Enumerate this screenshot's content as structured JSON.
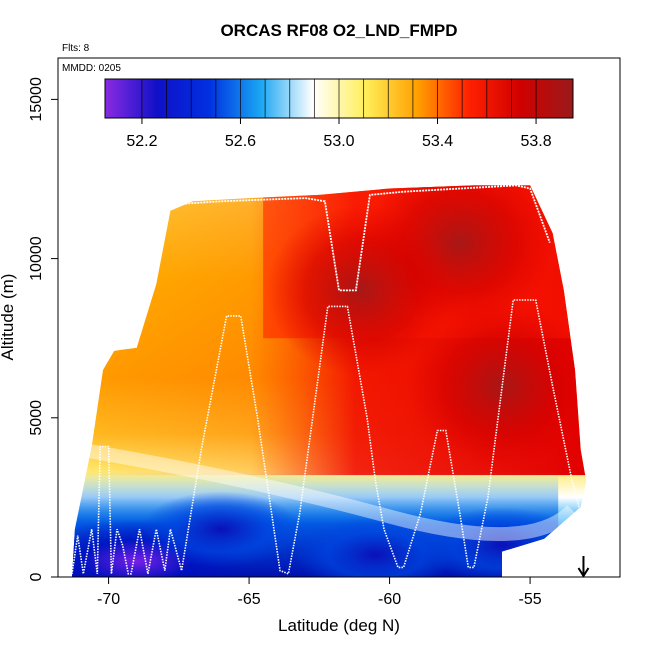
{
  "chart_data": {
    "type": "heatmap",
    "title": "ORCAS RF08 O2_LND_FMPD",
    "flights_note": "Flts: 8",
    "date_note": "MMDD: 0205",
    "xlabel": "Latitude (deg N)",
    "ylabel": "Altitude (m)",
    "xlim": [
      -71.8,
      -51.8
    ],
    "ylim": [
      0,
      16300
    ],
    "x_ticks": [
      -70,
      -65,
      -60,
      -55
    ],
    "y_ticks": [
      0,
      5000,
      10000,
      15000
    ],
    "colorbar": {
      "range": [
        52.05,
        53.95
      ],
      "ticks": [
        52.2,
        52.6,
        53.0,
        53.4,
        53.8
      ],
      "tick_labels": [
        "52.2",
        "52.6",
        "53.0",
        "53.4",
        "53.8"
      ],
      "colors": [
        "#8a2be2",
        "#1010c8",
        "#0030e0",
        "#1aa7f2",
        "#ffffff",
        "#ffef5a",
        "#ffa000",
        "#ff2000",
        "#d00000",
        "#9a1a1a"
      ]
    },
    "field": {
      "description": "O2_LND_FMPD cross-section, low values near surface south of -65, high values aloft and north",
      "upper_boundary": [
        [
          -71.2,
          1500
        ],
        [
          -70.6,
          4100
        ],
        [
          -70.2,
          6500
        ],
        [
          -69.8,
          7100
        ],
        [
          -69.0,
          7200
        ],
        [
          -68.3,
          9200
        ],
        [
          -67.8,
          11500
        ],
        [
          -67.0,
          11800
        ],
        [
          -65.0,
          11900
        ],
        [
          -62.5,
          12000
        ],
        [
          -60.0,
          12200
        ],
        [
          -57.0,
          12300
        ],
        [
          -55.0,
          12300
        ],
        [
          -54.2,
          10800
        ],
        [
          -53.8,
          9000
        ],
        [
          -53.4,
          6500
        ],
        [
          -53.2,
          4000
        ],
        [
          -53.0,
          3000
        ],
        [
          -53.2,
          2200
        ],
        [
          -54.5,
          1200
        ],
        [
          -56.0,
          800
        ]
      ],
      "low_centers": [
        {
          "lat": -69.0,
          "alt": 500,
          "value": 52.1
        },
        {
          "lat": -66.0,
          "alt": 1500,
          "value": 52.25
        },
        {
          "lat": -60.5,
          "alt": 700,
          "value": 52.3
        },
        {
          "lat": -56.0,
          "alt": 1000,
          "value": 52.5
        }
      ],
      "high_centers": [
        {
          "lat": -57.5,
          "alt": 10500,
          "value": 53.92
        },
        {
          "lat": -56.0,
          "alt": 6000,
          "value": 53.85
        },
        {
          "lat": -61.0,
          "alt": 9000,
          "value": 53.7
        }
      ]
    },
    "flight_track": [
      [
        -71.5,
        1200
      ],
      [
        -71.3,
        100
      ],
      [
        -71.1,
        1300
      ],
      [
        -70.9,
        100
      ],
      [
        -70.6,
        1500
      ],
      [
        -70.4,
        100
      ],
      [
        -70.3,
        4100
      ],
      [
        -70.0,
        4100
      ],
      [
        -69.9,
        100
      ],
      [
        -69.7,
        1500
      ],
      [
        -69.5,
        1000
      ],
      [
        -69.3,
        100
      ],
      [
        -69.2,
        100
      ],
      [
        -68.9,
        1500
      ],
      [
        -68.6,
        100
      ],
      [
        -68.3,
        1500
      ],
      [
        -68.0,
        200
      ],
      [
        -67.8,
        1500
      ],
      [
        -67.4,
        200
      ],
      [
        -66.7,
        4000
      ],
      [
        -65.8,
        8200
      ],
      [
        -65.3,
        8200
      ],
      [
        -64.7,
        5000
      ],
      [
        -64.2,
        2000
      ],
      [
        -63.9,
        200
      ],
      [
        -63.6,
        100
      ],
      [
        -63.2,
        2000
      ],
      [
        -62.2,
        8500
      ],
      [
        -61.5,
        8500
      ],
      [
        -60.8,
        5000
      ],
      [
        -60.5,
        3000
      ],
      [
        -60.2,
        1500
      ],
      [
        -59.7,
        300
      ],
      [
        -59.5,
        300
      ],
      [
        -58.9,
        2000
      ],
      [
        -58.3,
        4600
      ],
      [
        -58.0,
        4600
      ],
      [
        -57.5,
        2000
      ],
      [
        -57.2,
        300
      ],
      [
        -57.0,
        300
      ],
      [
        -56.5,
        2500
      ],
      [
        -55.6,
        8700
      ],
      [
        -54.8,
        8700
      ],
      [
        -54.2,
        6000
      ],
      [
        -53.5,
        3000
      ],
      [
        -53.2,
        2000
      ]
    ],
    "upper_track": [
      [
        -67.8,
        11700
      ],
      [
        -66.0,
        11800
      ],
      [
        -63.0,
        11900
      ],
      [
        -62.3,
        11800
      ],
      [
        -61.8,
        9000
      ],
      [
        -61.2,
        9000
      ],
      [
        -60.7,
        12000
      ],
      [
        -59.5,
        12100
      ],
      [
        -55.5,
        12300
      ],
      [
        -55.0,
        12200
      ],
      [
        -54.3,
        10500
      ]
    ],
    "arrow": {
      "lat": -53.1,
      "label": "↓"
    }
  }
}
